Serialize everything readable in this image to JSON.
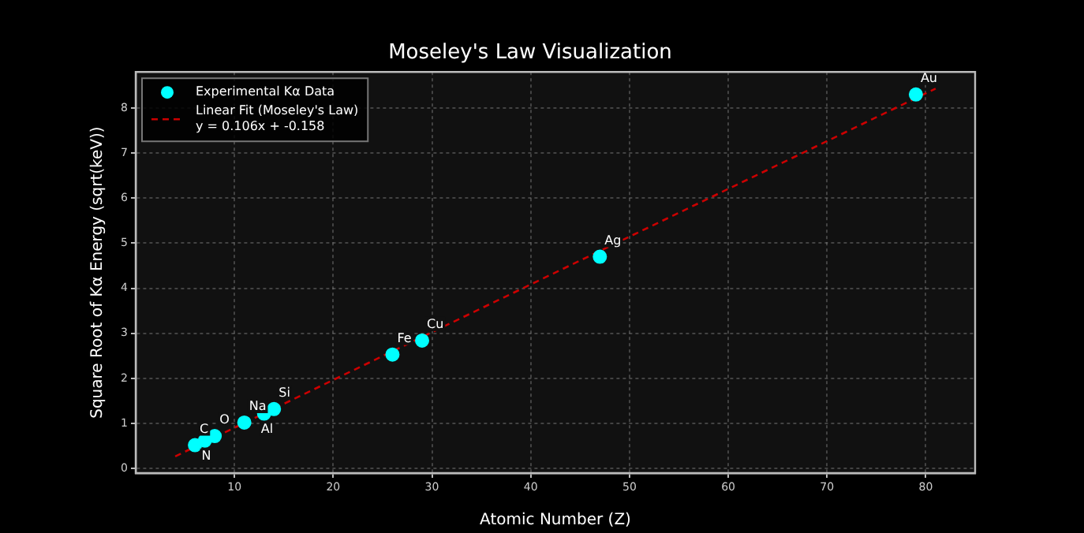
{
  "chart_data": {
    "type": "scatter",
    "title": "Moseley's Law Visualization",
    "xlabel": "Atomic Number (Z)",
    "ylabel": "Square Root of Kα Energy (sqrt(keV))",
    "x": [
      6,
      7,
      8,
      11,
      13,
      14,
      26,
      29,
      47,
      79
    ],
    "series": [
      {
        "name": "Experimental Kα Data",
        "type": "scatter",
        "color": "#00ffff",
        "values": [
          0.52,
          0.62,
          0.72,
          1.02,
          1.22,
          1.32,
          2.53,
          2.84,
          4.7,
          8.3
        ]
      },
      {
        "name": "Linear Fit (Moseley's Law)\ny = 0.106x + -0.158",
        "type": "line",
        "color": "#cc0000",
        "line_style": "dashed",
        "marker": "none",
        "x": [
          4,
          81
        ],
        "values": [
          0.27,
          8.43
        ]
      }
    ],
    "annotations": [
      {
        "text": "C",
        "x": 6,
        "y": 0.52
      },
      {
        "text": "N",
        "x": 7,
        "y": 0.62
      },
      {
        "text": "O",
        "x": 8,
        "y": 0.72
      },
      {
        "text": "Na",
        "x": 11,
        "y": 1.02
      },
      {
        "text": "Al",
        "x": 13,
        "y": 1.22
      },
      {
        "text": "Si",
        "x": 14,
        "y": 1.32
      },
      {
        "text": "Fe",
        "x": 26,
        "y": 2.53
      },
      {
        "text": "Cu",
        "x": 29,
        "y": 2.84
      },
      {
        "text": "Ag",
        "x": 47,
        "y": 4.7
      },
      {
        "text": "Au",
        "x": 79,
        "y": 8.3
      }
    ],
    "xlim": [
      0,
      85
    ],
    "xticks": [
      10,
      20,
      30,
      40,
      50,
      60,
      70,
      80
    ],
    "ylim": [
      -0.1,
      8.8
    ],
    "yticks": [
      0,
      1,
      2,
      3,
      4,
      5,
      6,
      7,
      8
    ],
    "grid": true,
    "legend": "top left",
    "marker": "circle"
  }
}
